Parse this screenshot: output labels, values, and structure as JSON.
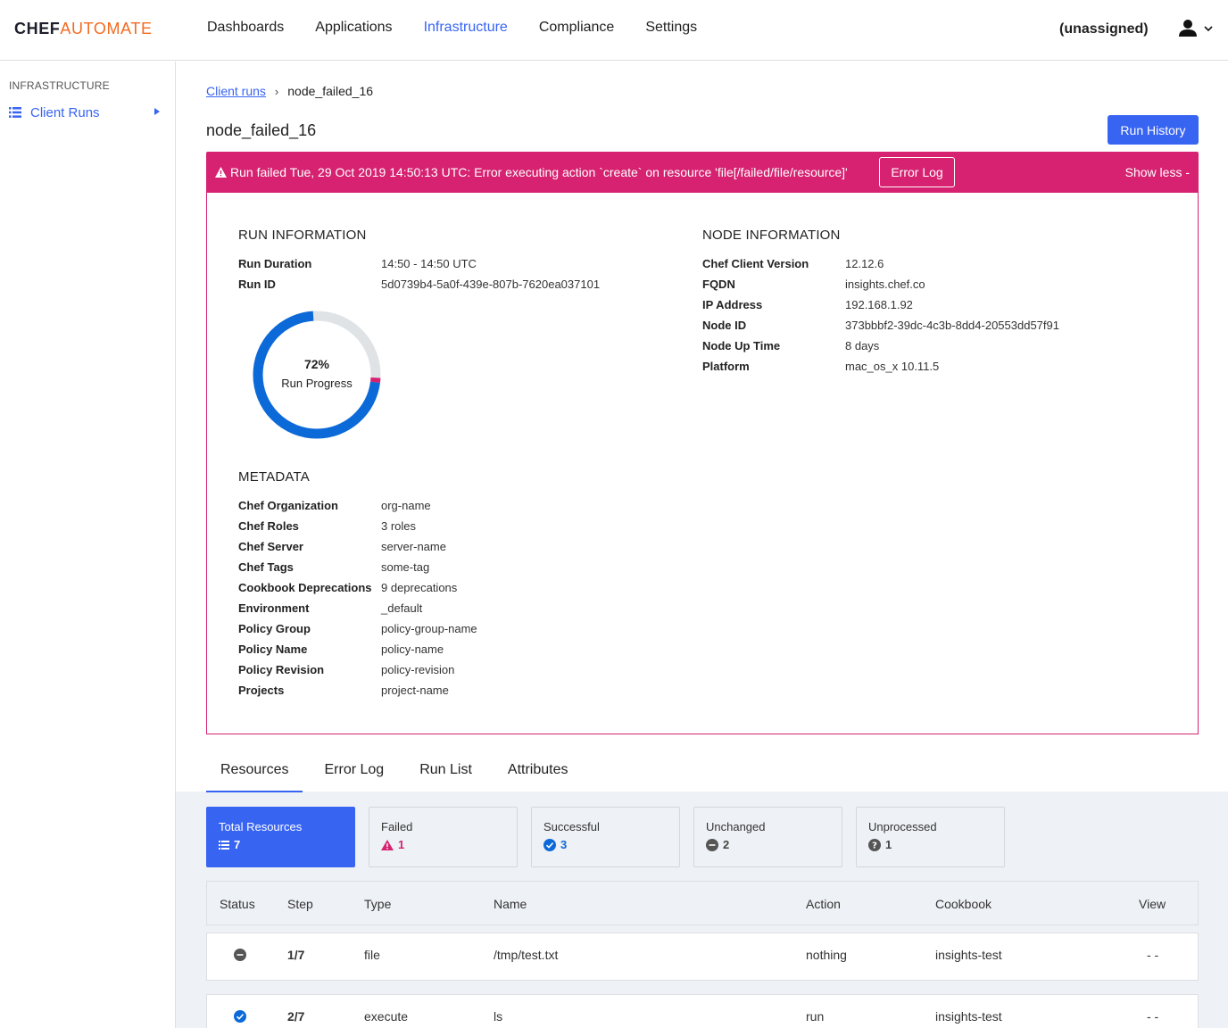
{
  "header": {
    "logo_chef": "CHEF",
    "logo_automate": "AUTOMATE",
    "nav": [
      "Dashboards",
      "Applications",
      "Infrastructure",
      "Compliance",
      "Settings"
    ],
    "active_nav": "Infrastructure",
    "project": "(unassigned)"
  },
  "sidebar": {
    "heading": "INFRASTRUCTURE",
    "item": "Client Runs"
  },
  "breadcrumb": {
    "parent": "Client runs",
    "sep": "›",
    "current": "node_failed_16"
  },
  "page_title": "node_failed_16",
  "run_history_label": "Run History",
  "alert": {
    "message": "Run failed Tue, 29 Oct 2019 14:50:13 UTC: Error executing action `create` on resource 'file[/failed/file/resource]'",
    "error_log_label": "Error Log",
    "show_less": "Show less -",
    "color": "#d62271"
  },
  "run_information": {
    "title": "RUN INFORMATION",
    "rows": [
      {
        "k": "Run Duration",
        "v": "14:50 - 14:50 UTC"
      },
      {
        "k": "Run ID",
        "v": "5d0739b4-5a0f-439e-807b-7620ea037101"
      }
    ],
    "progress_pct": "72%",
    "progress_value": 72,
    "progress_label": "Run Progress"
  },
  "node_information": {
    "title": "NODE INFORMATION",
    "rows": [
      {
        "k": "Chef Client Version",
        "v": "12.12.6"
      },
      {
        "k": "FQDN",
        "v": "insights.chef.co"
      },
      {
        "k": "IP Address",
        "v": "192.168.1.92"
      },
      {
        "k": "Node ID",
        "v": "373bbbf2-39dc-4c3b-8dd4-20553dd57f91"
      },
      {
        "k": "Node Up Time",
        "v": "8 days"
      },
      {
        "k": "Platform",
        "v": "mac_os_x 10.11.5"
      }
    ]
  },
  "metadata": {
    "title": "METADATA",
    "rows": [
      {
        "k": "Chef Organization",
        "v": "org-name"
      },
      {
        "k": "Chef Roles",
        "v": "3 roles"
      },
      {
        "k": "Chef Server",
        "v": "server-name"
      },
      {
        "k": "Chef Tags",
        "v": "some-tag"
      },
      {
        "k": "Cookbook Deprecations",
        "v": "9 deprecations"
      },
      {
        "k": "Environment",
        "v": "_default"
      },
      {
        "k": "Policy Group",
        "v": "policy-group-name"
      },
      {
        "k": "Policy Name",
        "v": "policy-name"
      },
      {
        "k": "Policy Revision",
        "v": "policy-revision"
      },
      {
        "k": "Projects",
        "v": "project-name"
      }
    ]
  },
  "tabs": [
    "Resources",
    "Error Log",
    "Run List",
    "Attributes"
  ],
  "active_tab": "Resources",
  "cards": [
    {
      "label": "Total Resources",
      "count": "7",
      "icon": "list-icon"
    },
    {
      "label": "Failed",
      "count": "1",
      "icon": "warning-icon"
    },
    {
      "label": "Successful",
      "count": "3",
      "icon": "check-circle-icon"
    },
    {
      "label": "Unchanged",
      "count": "2",
      "icon": "minus-circle-icon"
    },
    {
      "label": "Unprocessed",
      "count": "1",
      "icon": "question-circle-icon"
    }
  ],
  "table": {
    "headers": [
      "Status",
      "Step",
      "Type",
      "Name",
      "Action",
      "Cookbook",
      "View"
    ],
    "rows": [
      {
        "status": "unchanged",
        "step": "1/7",
        "type": "file",
        "name": "/tmp/test.txt",
        "action": "nothing",
        "cookbook": "insights-test",
        "view": "- -"
      },
      {
        "status": "successful",
        "step": "2/7",
        "type": "execute",
        "name": "ls",
        "action": "run",
        "cookbook": "insights-test",
        "view": "- -"
      }
    ]
  },
  "colors": {
    "primary": "#3864f2",
    "failed": "#d62271",
    "progress_bg": "#dfe3e6"
  }
}
